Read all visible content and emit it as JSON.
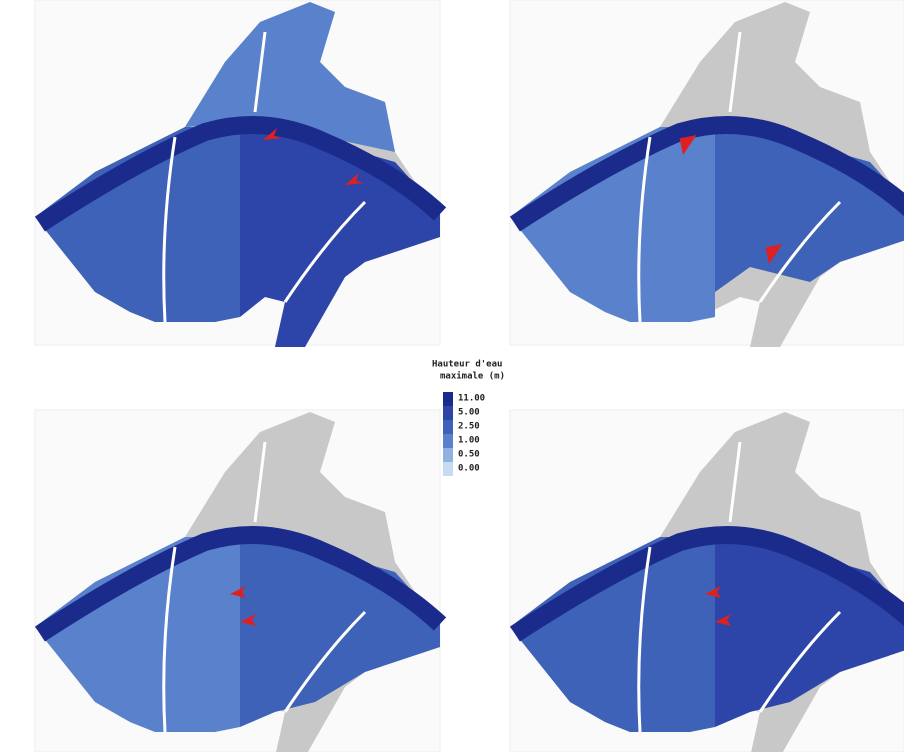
{
  "legend": {
    "title": [
      "Hauteur d'eau",
      "maximale (m)"
    ],
    "classes": [
      {
        "value": 11,
        "label": "11.00",
        "color": "#1b2b8c"
      },
      {
        "value": 5,
        "label": "5.00",
        "color": "#2d45a8"
      },
      {
        "value": 2.5,
        "label": "2.50",
        "color": "#3d62b8"
      },
      {
        "value": 1,
        "label": "1.00",
        "color": "#5a82cc"
      },
      {
        "value": 0.5,
        "label": "0.50",
        "color": "#8fb2e0"
      },
      {
        "value": 0,
        "label": "0.00",
        "color": "#c6dbf2"
      }
    ]
  }
}
